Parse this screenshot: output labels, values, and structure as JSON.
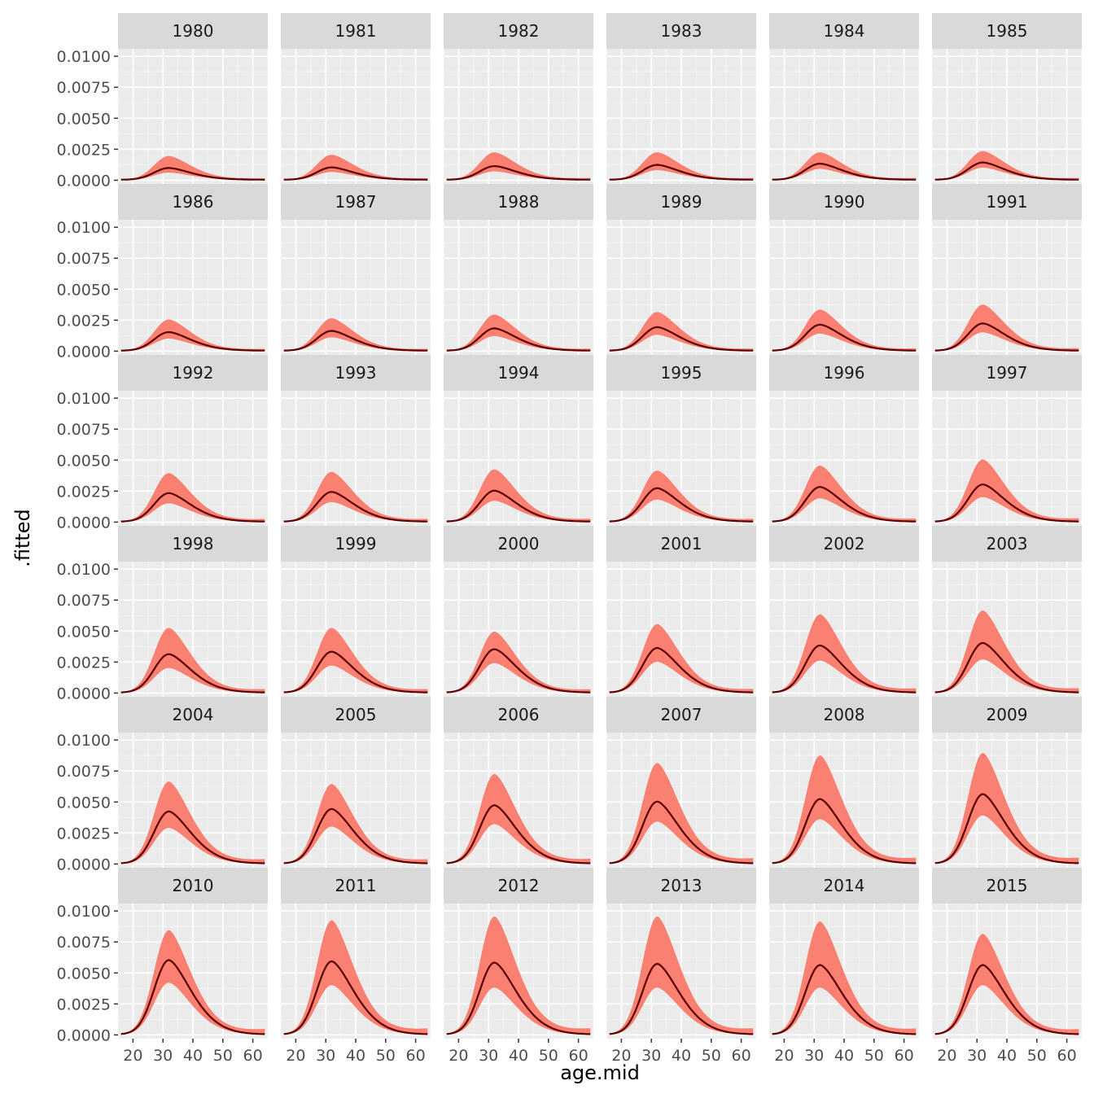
{
  "colors": {
    "panel_background": "#ebebeb",
    "grid_major": "#ffffff",
    "strip_background": "#d9d9d9",
    "ribbon_fill": "#fa8072",
    "line_color": "#5a0000",
    "tick_color": "#333333"
  },
  "chart_data": {
    "type": "line",
    "layout": "faceted small multiples, 6 columns x 6 rows, shared axes",
    "xlabel": "age.mid",
    "ylabel": ".fitted",
    "xlim": [
      15,
      65
    ],
    "ylim": [
      -0.0003,
      0.0106
    ],
    "x_ticks": [
      20,
      30,
      40,
      50,
      60
    ],
    "y_ticks": [
      0,
      0.0025,
      0.005,
      0.0075,
      0.01
    ],
    "y_tick_labels": [
      "0.0000",
      "0.0025",
      "0.0050",
      "0.0075",
      "0.0100"
    ],
    "grid": true,
    "series": [
      {
        "role": "fitted line",
        "description": "curve peaking near age 32 in each panel"
      },
      {
        "role": "uncertainty ribbon",
        "description": "shaded interval around the fitted line"
      }
    ],
    "panels": [
      {
        "label": "1980",
        "peak": 0.00095,
        "lower": 0.0006,
        "upper": 0.0019
      },
      {
        "label": "1981",
        "peak": 0.001,
        "lower": 0.00065,
        "upper": 0.002
      },
      {
        "label": "1982",
        "peak": 0.0011,
        "lower": 0.0007,
        "upper": 0.0022
      },
      {
        "label": "1983",
        "peak": 0.0012,
        "lower": 0.0008,
        "upper": 0.0022
      },
      {
        "label": "1984",
        "peak": 0.0013,
        "lower": 0.0009,
        "upper": 0.0022
      },
      {
        "label": "1985",
        "peak": 0.0014,
        "lower": 0.001,
        "upper": 0.0023
      },
      {
        "label": "1986",
        "peak": 0.0015,
        "lower": 0.001,
        "upper": 0.0025
      },
      {
        "label": "1987",
        "peak": 0.0016,
        "lower": 0.0011,
        "upper": 0.0026
      },
      {
        "label": "1988",
        "peak": 0.0018,
        "lower": 0.0012,
        "upper": 0.0029
      },
      {
        "label": "1989",
        "peak": 0.0019,
        "lower": 0.0013,
        "upper": 0.0031
      },
      {
        "label": "1990",
        "peak": 0.0021,
        "lower": 0.0014,
        "upper": 0.0033
      },
      {
        "label": "1991",
        "peak": 0.0022,
        "lower": 0.0015,
        "upper": 0.0037
      },
      {
        "label": "1992",
        "peak": 0.0023,
        "lower": 0.0015,
        "upper": 0.0039
      },
      {
        "label": "1993",
        "peak": 0.0024,
        "lower": 0.0016,
        "upper": 0.004
      },
      {
        "label": "1994",
        "peak": 0.0025,
        "lower": 0.0017,
        "upper": 0.0042
      },
      {
        "label": "1995",
        "peak": 0.0027,
        "lower": 0.0018,
        "upper": 0.0041
      },
      {
        "label": "1996",
        "peak": 0.0028,
        "lower": 0.0019,
        "upper": 0.0045
      },
      {
        "label": "1997",
        "peak": 0.003,
        "lower": 0.002,
        "upper": 0.005
      },
      {
        "label": "1998",
        "peak": 0.0031,
        "lower": 0.002,
        "upper": 0.0052
      },
      {
        "label": "1999",
        "peak": 0.0033,
        "lower": 0.0022,
        "upper": 0.0052
      },
      {
        "label": "2000",
        "peak": 0.0035,
        "lower": 0.0024,
        "upper": 0.0049
      },
      {
        "label": "2001",
        "peak": 0.0036,
        "lower": 0.0025,
        "upper": 0.0055
      },
      {
        "label": "2002",
        "peak": 0.0038,
        "lower": 0.0026,
        "upper": 0.0063
      },
      {
        "label": "2003",
        "peak": 0.004,
        "lower": 0.0027,
        "upper": 0.0066
      },
      {
        "label": "2004",
        "peak": 0.0042,
        "lower": 0.0029,
        "upper": 0.0066
      },
      {
        "label": "2005",
        "peak": 0.0044,
        "lower": 0.003,
        "upper": 0.0064
      },
      {
        "label": "2006",
        "peak": 0.0047,
        "lower": 0.0032,
        "upper": 0.0072
      },
      {
        "label": "2007",
        "peak": 0.005,
        "lower": 0.0034,
        "upper": 0.0081
      },
      {
        "label": "2008",
        "peak": 0.0052,
        "lower": 0.0036,
        "upper": 0.0087
      },
      {
        "label": "2009",
        "peak": 0.0056,
        "lower": 0.0039,
        "upper": 0.0089
      },
      {
        "label": "2010",
        "peak": 0.006,
        "lower": 0.0042,
        "upper": 0.0084
      },
      {
        "label": "2011",
        "peak": 0.0059,
        "lower": 0.004,
        "upper": 0.0092
      },
      {
        "label": "2012",
        "peak": 0.0058,
        "lower": 0.0038,
        "upper": 0.0095
      },
      {
        "label": "2013",
        "peak": 0.0057,
        "lower": 0.0038,
        "upper": 0.0095
      },
      {
        "label": "2014",
        "peak": 0.0056,
        "lower": 0.0038,
        "upper": 0.0091
      },
      {
        "label": "2015",
        "peak": 0.0056,
        "lower": 0.004,
        "upper": 0.0081
      }
    ]
  }
}
